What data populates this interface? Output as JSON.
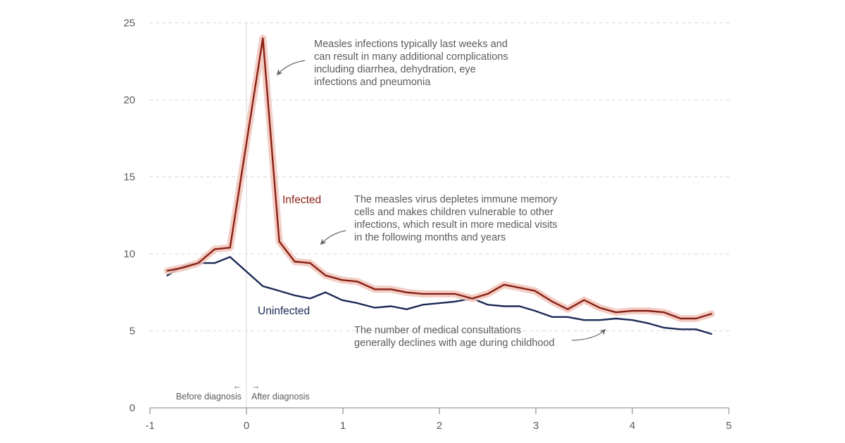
{
  "chart_data": {
    "type": "line",
    "title": "",
    "xlabel": "",
    "ylabel": "",
    "xlim": [
      -1,
      5
    ],
    "ylim": [
      0,
      25
    ],
    "grid": true,
    "x_ticks": [
      "-1",
      "0",
      "1",
      "2",
      "3",
      "4",
      "5"
    ],
    "x_tick_values": [
      -1,
      0,
      1,
      2,
      3,
      4,
      5
    ],
    "y_ticks": [
      "0",
      "5",
      "10",
      "15",
      "20",
      "25"
    ],
    "y_tick_values": [
      0,
      5,
      10,
      15,
      20,
      25
    ],
    "series": [
      {
        "name": "Infected",
        "color": "#8a1f14",
        "band_color": "#f0c6bb",
        "x": [
          -0.82,
          -0.66,
          -0.5,
          -0.33,
          -0.17,
          0.17,
          0.34,
          0.5,
          0.66,
          0.82,
          0.99,
          1.15,
          1.33,
          1.5,
          1.66,
          1.83,
          2.0,
          2.16,
          2.34,
          2.5,
          2.67,
          2.83,
          2.99,
          3.17,
          3.33,
          3.5,
          3.66,
          3.83,
          4.0,
          4.16,
          4.33,
          4.5,
          4.66,
          4.82
        ],
        "values": [
          8.9,
          9.1,
          9.4,
          10.3,
          10.4,
          24.0,
          10.8,
          9.5,
          9.4,
          8.6,
          8.3,
          8.2,
          7.7,
          7.7,
          7.5,
          7.4,
          7.4,
          7.4,
          7.1,
          7.4,
          8.0,
          7.8,
          7.6,
          6.9,
          6.4,
          7.0,
          6.5,
          6.2,
          6.3,
          6.3,
          6.2,
          5.8,
          5.8,
          6.1
        ]
      },
      {
        "name": "Uninfected",
        "color": "#1b2a55",
        "x": [
          -0.82,
          -0.66,
          -0.5,
          -0.33,
          -0.17,
          0.17,
          0.34,
          0.5,
          0.66,
          0.82,
          0.99,
          1.15,
          1.33,
          1.5,
          1.66,
          1.83,
          2.0,
          2.16,
          2.34,
          2.5,
          2.67,
          2.83,
          2.99,
          3.17,
          3.33,
          3.5,
          3.66,
          3.83,
          4.0,
          4.16,
          4.33,
          4.5,
          4.66,
          4.82
        ],
        "values": [
          8.6,
          9.2,
          9.4,
          9.4,
          9.8,
          7.9,
          7.6,
          7.3,
          7.1,
          7.5,
          7.0,
          6.8,
          6.5,
          6.6,
          6.4,
          6.7,
          6.8,
          6.9,
          7.1,
          6.7,
          6.6,
          6.6,
          6.3,
          5.9,
          5.9,
          5.7,
          5.7,
          5.8,
          5.7,
          5.5,
          5.2,
          5.1,
          5.1,
          4.8
        ]
      }
    ],
    "series_labels": {
      "infected": "Infected",
      "uninfected": "Uninfected"
    },
    "diagnosis_marker": {
      "x": 0,
      "before_arrow": "←",
      "after_arrow": "→",
      "before_label": "Before diagnosis",
      "after_label": "After diagnosis"
    },
    "annotations": [
      {
        "id": "peak",
        "lines": [
          "Measles infections typically last weeks and",
          "can result in many additional complications",
          "including diarrhea, dehydration, eye",
          "infections and pneumonia"
        ]
      },
      {
        "id": "immune-memory",
        "lines": [
          "The measles virus depletes immune memory",
          "cells and makes children vulnerable to other",
          "infections, which result in more medical visits",
          "in the following months and years"
        ]
      },
      {
        "id": "decline",
        "lines": [
          "The number of medical consultations",
          "generally declines with age during childhood"
        ]
      }
    ]
  }
}
